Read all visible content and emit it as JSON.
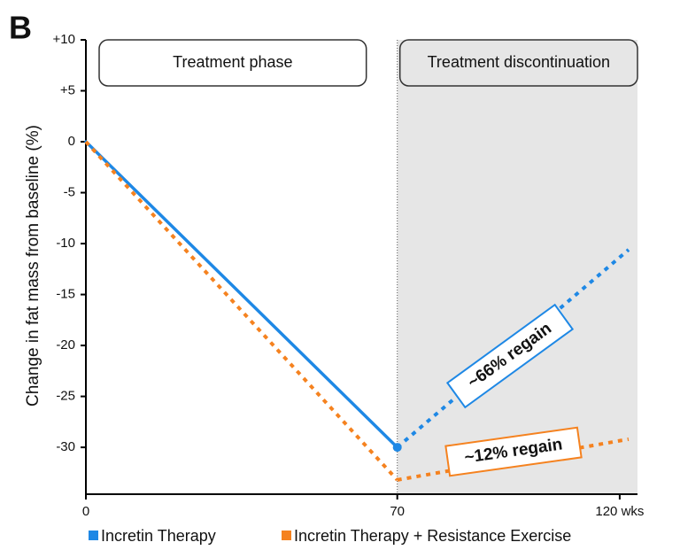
{
  "chart_data": {
    "type": "line",
    "panel_label": "B",
    "y_label": "Change in fat mass from baseline (%)",
    "xlim": [
      0,
      124
    ],
    "ylim": [
      -34.6,
      10
    ],
    "xticks": [
      0,
      70,
      {
        "value": 120,
        "label": "120 wks"
      }
    ],
    "yticks": [
      {
        "value": 10,
        "label": "+10"
      },
      {
        "value": 5,
        "label": "+5"
      },
      0,
      -5,
      -10,
      -15,
      -20,
      -25,
      -30
    ],
    "phases": [
      {
        "label": "Treatment phase",
        "start": 0,
        "end": 70,
        "shaded": false
      },
      {
        "label": "Treatment discontinuation",
        "start": 70,
        "end": 124,
        "shaded": true
      }
    ],
    "series": [
      {
        "name": "Incretin Therapy",
        "color": "#1e88e5",
        "x": [
          0,
          70,
          122
        ],
        "values": [
          0,
          -30,
          -10.6
        ],
        "segment_styles": [
          "solid",
          "dotted"
        ]
      },
      {
        "name": "Incretin Therapy + Resistance Exercise",
        "color": "#f5821f",
        "x": [
          0,
          70,
          122
        ],
        "values": [
          0,
          -33.2,
          -29.2
        ],
        "segment_styles": [
          "dotted",
          "dotted"
        ]
      }
    ],
    "annotations": [
      {
        "text": "~66% regain",
        "color": "#1e88e5"
      },
      {
        "text": "~12% regain",
        "color": "#f5821f"
      }
    ]
  }
}
